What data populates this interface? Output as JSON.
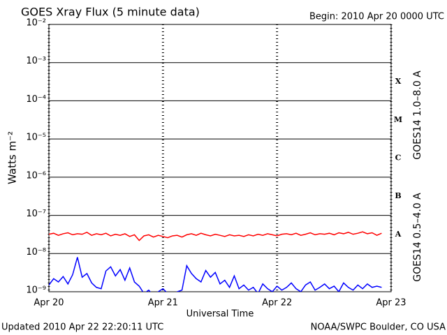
{
  "chart_data": {
    "type": "line",
    "title": "GOES Xray Flux (5 minute data)",
    "subtitle": "Begin:  2010 Apr 20 0000 UTC",
    "y_label": "Watts m⁻²",
    "x_label": "Universal Time",
    "footer_left": "Updated 2010 Apr 22 22:20:11 UTC",
    "footer_right": "NOAA/SWPC Boulder, CO USA",
    "log_y": true,
    "grid": true,
    "flare_classes": [
      "A",
      "B",
      "C",
      "M",
      "X"
    ],
    "xlim": [
      0,
      72
    ],
    "xticks": [
      {
        "value": 0,
        "label": "Apr 20"
      },
      {
        "value": 24,
        "label": "Apr 21"
      },
      {
        "value": 48,
        "label": "Apr 22"
      },
      {
        "value": 72,
        "label": "Apr 23"
      }
    ],
    "ylim": [
      1e-09,
      0.01
    ],
    "yticks": [
      {
        "value": 1e-09,
        "label": "10⁻⁹"
      },
      {
        "value": 1e-08,
        "label": "10⁻⁸"
      },
      {
        "value": 1e-07,
        "label": "10⁻⁷"
      },
      {
        "value": 1e-06,
        "label": "10⁻⁶"
      },
      {
        "value": 1e-05,
        "label": "10⁻⁵"
      },
      {
        "value": 0.0001,
        "label": "10⁻⁴"
      },
      {
        "value": 0.001,
        "label": "10⁻³"
      },
      {
        "value": 0.01,
        "label": "10⁻²"
      }
    ],
    "x": [
      0,
      1,
      2,
      3,
      4,
      5,
      6,
      7,
      8,
      9,
      10,
      11,
      12,
      13,
      14,
      15,
      16,
      17,
      18,
      19,
      20,
      21,
      22,
      23,
      24,
      25,
      26,
      27,
      28,
      29,
      30,
      31,
      32,
      33,
      34,
      35,
      36,
      37,
      38,
      39,
      40,
      41,
      42,
      43,
      44,
      45,
      46,
      47,
      48,
      49,
      50,
      51,
      52,
      53,
      54,
      55,
      56,
      57,
      58,
      59,
      60,
      61,
      62,
      63,
      64,
      65,
      66,
      67,
      68,
      69,
      70
    ],
    "series": [
      {
        "name": "GOES14 1.0–8.0 A",
        "color": "#ff0000",
        "values": [
          3.2e-08,
          3.4e-08,
          3e-08,
          3.3e-08,
          3.5e-08,
          3.1e-08,
          3.3e-08,
          3.2e-08,
          3.6e-08,
          3e-08,
          3.3e-08,
          3.1e-08,
          3.4e-08,
          2.9e-08,
          3.2e-08,
          3e-08,
          3.3e-08,
          2.8e-08,
          3.1e-08,
          2.2e-08,
          2.9e-08,
          3.1e-08,
          2.7e-08,
          3e-08,
          2.8e-08,
          2.6e-08,
          2.9e-08,
          3e-08,
          2.7e-08,
          3.1e-08,
          3.3e-08,
          3e-08,
          3.4e-08,
          3.1e-08,
          2.9e-08,
          3.2e-08,
          3e-08,
          2.8e-08,
          3.1e-08,
          2.9e-08,
          3e-08,
          2.8e-08,
          3.1e-08,
          2.9e-08,
          3.2e-08,
          3e-08,
          3.3e-08,
          3.1e-08,
          2.9e-08,
          3.2e-08,
          3.3e-08,
          3.1e-08,
          3.4e-08,
          3e-08,
          3.2e-08,
          3.5e-08,
          3.1e-08,
          3.3e-08,
          3.2e-08,
          3.4e-08,
          3.1e-08,
          3.5e-08,
          3.3e-08,
          3.6e-08,
          3.2e-08,
          3.4e-08,
          3.7e-08,
          3.3e-08,
          3.5e-08,
          3e-08,
          3.4e-08
        ]
      },
      {
        "name": "GOES14 0.5–4.0 A",
        "color": "#0000ff",
        "values": [
          1.5e-09,
          2.2e-09,
          1.8e-09,
          2.5e-09,
          1.6e-09,
          2.8e-09,
          8e-09,
          2.4e-09,
          3e-09,
          1.7e-09,
          1.3e-09,
          1.2e-09,
          3.5e-09,
          4.5e-09,
          2.6e-09,
          3.8e-09,
          2e-09,
          4.2e-09,
          1.8e-09,
          1.4e-09,
          9e-10,
          1.1e-09,
          8e-10,
          1e-09,
          1.2e-09,
          9e-10,
          8e-10,
          1e-09,
          1.1e-09,
          4.8e-09,
          3e-09,
          2.2e-09,
          1.8e-09,
          3.6e-09,
          2.4e-09,
          3.2e-09,
          1.6e-09,
          2e-09,
          1.3e-09,
          2.6e-09,
          1.2e-09,
          1.5e-09,
          1.1e-09,
          1.3e-09,
          9e-10,
          1.6e-09,
          1.2e-09,
          1e-09,
          1.4e-09,
          1.1e-09,
          1.3e-09,
          1.7e-09,
          1.2e-09,
          1e-09,
          1.5e-09,
          1.8e-09,
          1.1e-09,
          1.3e-09,
          1.6e-09,
          1.2e-09,
          1.4e-09,
          1e-09,
          1.7e-09,
          1.3e-09,
          1.1e-09,
          1.5e-09,
          1.2e-09,
          1.6e-09,
          1.3e-09,
          1.4e-09,
          1.3e-09
        ]
      }
    ]
  }
}
